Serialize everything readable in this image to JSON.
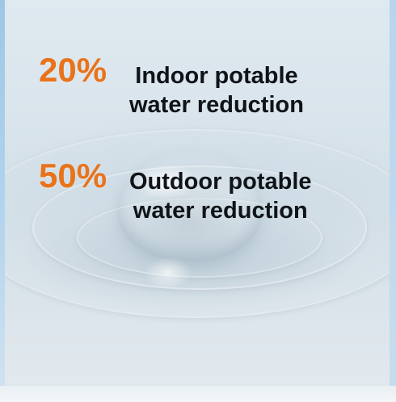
{
  "stats": [
    {
      "percent": "20%",
      "label_line1": "Indoor potable",
      "label_line2": "water reduction"
    },
    {
      "percent": "50%",
      "label_line1": "Outdoor potable",
      "label_line2": "water reduction"
    }
  ],
  "colors": {
    "accent": "#e8731b",
    "text": "#101418",
    "background": "#d9e4eb",
    "edge": "#b4d5ee"
  },
  "background_image": "water-droplet-photo"
}
